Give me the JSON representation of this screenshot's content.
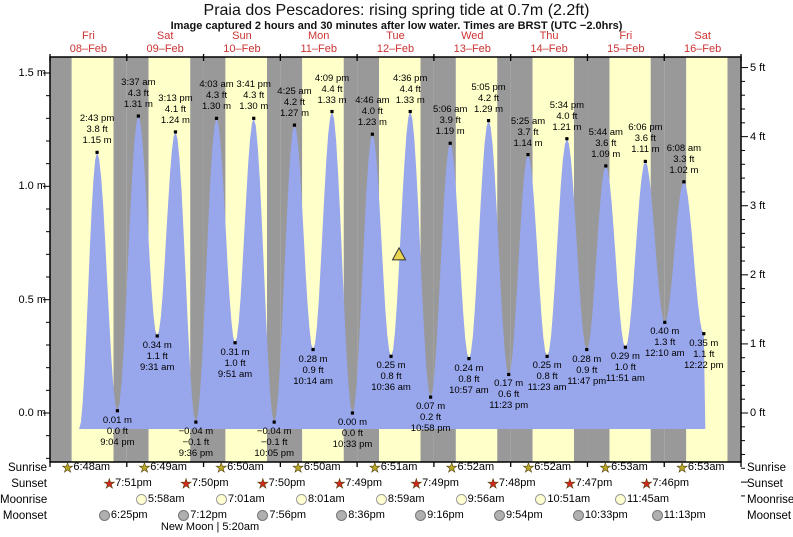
{
  "header": {
    "title": "Praia dos Pescadores: rising  spring tide at 0.7m (2.2ft)",
    "subtitle": "Image captured 2 hours and 30 minutes after low water. Times are BRST (UTC −2.0hrs)"
  },
  "colors": {
    "day_stripe": "#ffffc9",
    "night_stripe": "#999999",
    "tide_fill": "#98a6ec",
    "date_label": "#cc3333",
    "marker_fill": "#e8d44e",
    "sunrise_star": "#b8a826",
    "sunset_star": "#d3281e",
    "moonrise_circle": "#ffffd0",
    "moonset_circle": "#b0b0b0"
  },
  "axes": {
    "left_tick_labels": [
      "0.0 m",
      "0.5 m",
      "1.0 m",
      "1.5 m"
    ],
    "left_tick_values_m": [
      0.0,
      0.5,
      1.0,
      1.5
    ],
    "right_tick_labels": [
      "0 ft",
      "1 ft",
      "2 ft",
      "3 ft",
      "4 ft",
      "5 ft"
    ],
    "right_tick_values_ft": [
      0,
      1,
      2,
      3,
      4,
      5
    ]
  },
  "days": [
    {
      "name": "Fri",
      "date": "08–Feb",
      "sunrise": "6:48am",
      "sunset": "7:51pm",
      "moonrise": null,
      "moonset": "6:25pm"
    },
    {
      "name": "Sat",
      "date": "09–Feb",
      "sunrise": "6:49am",
      "sunset": "7:50pm",
      "moonrise": "5:58am",
      "moonset": "7:12pm"
    },
    {
      "name": "Sun",
      "date": "10–Feb",
      "sunrise": "6:50am",
      "sunset": "7:50pm",
      "moonrise": "7:01am",
      "moonset": "7:56pm"
    },
    {
      "name": "Mon",
      "date": "11–Feb",
      "sunrise": "6:50am",
      "sunset": "7:49pm",
      "moonrise": "8:01am",
      "moonset": "8:36pm"
    },
    {
      "name": "Tue",
      "date": "12–Feb",
      "sunrise": "6:51am",
      "sunset": "7:49pm",
      "moonrise": "8:59am",
      "moonset": "9:16pm"
    },
    {
      "name": "Wed",
      "date": "13–Feb",
      "sunrise": "6:52am",
      "sunset": "7:48pm",
      "moonrise": "9:56am",
      "moonset": "9:54pm"
    },
    {
      "name": "Thu",
      "date": "14–Feb",
      "sunrise": "6:52am",
      "sunset": "7:47pm",
      "moonrise": "10:51am",
      "moonset": "10:33pm"
    },
    {
      "name": "Fri",
      "date": "15–Feb",
      "sunrise": "6:53am",
      "sunset": "7:46pm",
      "moonrise": "11:45am",
      "moonset": "11:13pm"
    },
    {
      "name": "Sat",
      "date": "16–Feb",
      "sunrise": "6:53am",
      "sunset": null,
      "moonrise": null,
      "moonset": null
    }
  ],
  "astro_row_labels": [
    "Sunrise",
    "Sunset",
    "Moonrise",
    "Moonset"
  ],
  "footer_note": "New Moon | 5:20am",
  "chart_data": {
    "type": "area",
    "title": "Praia dos Pescadores: rising  spring tide at 0.7m (2.2ft)",
    "ylabel_left_unit": "m",
    "ylabel_right_unit": "ft",
    "ylim_m": [
      -0.22,
      1.57
    ],
    "x_categories": [
      "Fri 08–Feb",
      "Sat 09–Feb",
      "Sun 10–Feb",
      "Mon 11–Feb",
      "Tue 12–Feb",
      "Wed 13–Feb",
      "Thu 14–Feb",
      "Fri 15–Feb",
      "Sat 16–Feb"
    ],
    "high_tides": [
      {
        "day": 0,
        "time": "2:43 pm",
        "ft": 3.8,
        "m": 1.15
      },
      {
        "day": 1,
        "time": "3:37 am",
        "ft": 4.3,
        "m": 1.31
      },
      {
        "day": 1,
        "time": "3:13 pm",
        "ft": 4.1,
        "m": 1.24
      },
      {
        "day": 2,
        "time": "4:03 am",
        "ft": 4.3,
        "m": 1.3
      },
      {
        "day": 2,
        "time": "3:41 pm",
        "ft": 4.3,
        "m": 1.3
      },
      {
        "day": 3,
        "time": "4:25 am",
        "ft": 4.2,
        "m": 1.27
      },
      {
        "day": 3,
        "time": "4:09 pm",
        "ft": 4.4,
        "m": 1.33
      },
      {
        "day": 4,
        "time": "4:46 am",
        "ft": 4.0,
        "m": 1.23
      },
      {
        "day": 4,
        "time": "4:36 pm",
        "ft": 4.4,
        "m": 1.33
      },
      {
        "day": 5,
        "time": "5:06 am",
        "ft": 3.9,
        "m": 1.19
      },
      {
        "day": 5,
        "time": "5:05 pm",
        "ft": 4.2,
        "m": 1.29
      },
      {
        "day": 6,
        "time": "5:25 am",
        "ft": 3.7,
        "m": 1.14
      },
      {
        "day": 6,
        "time": "5:34 pm",
        "ft": 4.0,
        "m": 1.21
      },
      {
        "day": 7,
        "time": "5:44 am",
        "ft": 3.6,
        "m": 1.09
      },
      {
        "day": 7,
        "time": "6:06 pm",
        "ft": 3.6,
        "m": 1.11
      },
      {
        "day": 8,
        "time": "6:08 am",
        "ft": 3.3,
        "m": 1.02
      }
    ],
    "low_tides": [
      {
        "day": 0,
        "time": "9:04 pm",
        "ft": 0.0,
        "m": 0.01
      },
      {
        "day": 1,
        "time": "9:31 am",
        "ft": 1.1,
        "m": 0.34
      },
      {
        "day": 1,
        "time": "9:36 pm",
        "ft": -0.1,
        "m": -0.04
      },
      {
        "day": 2,
        "time": "9:51 am",
        "ft": 1.0,
        "m": 0.31
      },
      {
        "day": 2,
        "time": "10:05 pm",
        "ft": -0.1,
        "m": -0.04
      },
      {
        "day": 3,
        "time": "10:14 am",
        "ft": 0.9,
        "m": 0.28
      },
      {
        "day": 3,
        "time": "10:33 pm",
        "ft": 0.0,
        "m": 0.0
      },
      {
        "day": 4,
        "time": "10:36 am",
        "ft": 0.8,
        "m": 0.25
      },
      {
        "day": 4,
        "time": "10:58 pm",
        "ft": 0.2,
        "m": 0.07
      },
      {
        "day": 5,
        "time": "10:57 am",
        "ft": 0.8,
        "m": 0.24
      },
      {
        "day": 5,
        "time": "11:23 pm",
        "ft": 0.6,
        "m": 0.17
      },
      {
        "day": 6,
        "time": "11:23 am",
        "ft": 0.8,
        "m": 0.25
      },
      {
        "day": 6,
        "time": "11:47 pm",
        "ft": 0.9,
        "m": 0.28
      },
      {
        "day": 7,
        "time": "11:51 am",
        "ft": 1.0,
        "m": 0.29
      },
      {
        "day": 8,
        "time": "12:10 am",
        "ft": 1.3,
        "m": 0.4
      },
      {
        "day": 8,
        "time": "12:22 pm",
        "ft": 1.1,
        "m": 0.35
      }
    ],
    "marker": {
      "symbol": "triangle",
      "day": 4,
      "hour_of_day": 13.1,
      "height_m": 0.7
    }
  }
}
